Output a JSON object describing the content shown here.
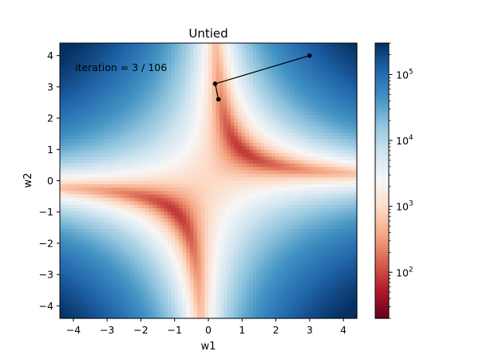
{
  "chart_data": {
    "type": "heatmap",
    "title": "Untied",
    "xlabel": "w1",
    "ylabel": "w2",
    "xlim": [
      -4.4,
      4.4
    ],
    "ylim": [
      -4.4,
      4.4
    ],
    "xticks": [
      -4,
      -3,
      -2,
      -1,
      0,
      1,
      2,
      3,
      4
    ],
    "yticks": [
      -4,
      -3,
      -2,
      -1,
      0,
      1,
      2,
      3,
      4
    ],
    "grid": false,
    "annotation": "iteration = 3 / 106",
    "trajectory": [
      {
        "w1": 3.0,
        "w2": 4.0
      },
      {
        "w1": 0.2,
        "w2": 3.1
      },
      {
        "w1": 0.3,
        "w2": 2.6
      }
    ],
    "colorbar": {
      "scale": "log",
      "colormap": "RdBu",
      "min": 20,
      "max": 300000,
      "ticks": [
        {
          "value": 100,
          "base": "10",
          "exp": "2"
        },
        {
          "value": 1000,
          "base": "10",
          "exp": "3"
        },
        {
          "value": 10000,
          "base": "10",
          "exp": "4"
        },
        {
          "value": 100000,
          "base": "10",
          "exp": "5"
        }
      ]
    }
  }
}
